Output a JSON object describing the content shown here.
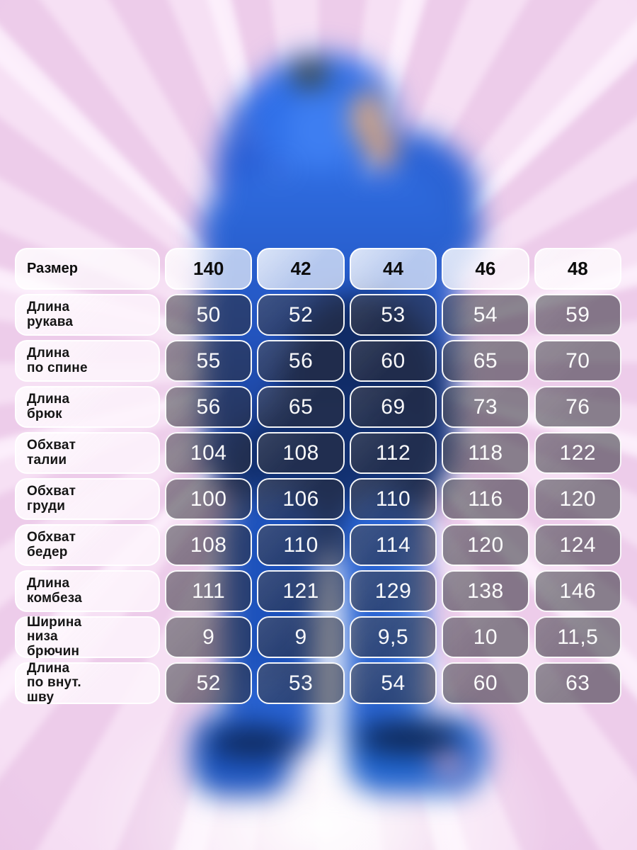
{
  "colors": {
    "background_pink": "#efcfed",
    "ray_light": "#f6e0f4",
    "figure_blue": "#2f6fe8",
    "value_cell_overlay": "rgba(46,45,54,0.55)",
    "value_text": "#ffffff",
    "label_text": "#151515"
  },
  "chart_data": {
    "type": "table",
    "title": "",
    "columns": [
      "Размер",
      "140",
      "42",
      "44",
      "46",
      "48"
    ],
    "rows": [
      {
        "label": "Длина\nрукава",
        "values": [
          "50",
          "52",
          "53",
          "54",
          "59"
        ]
      },
      {
        "label": "Длина\nпо спине",
        "values": [
          "55",
          "56",
          "60",
          "65",
          "70"
        ]
      },
      {
        "label": "Длина\nбрюк",
        "values": [
          "56",
          "65",
          "69",
          "73",
          "76"
        ]
      },
      {
        "label": "Обхват\nталии",
        "values": [
          "104",
          "108",
          "112",
          "118",
          "122"
        ]
      },
      {
        "label": "Обхват\nгруди",
        "values": [
          "100",
          "106",
          "110",
          "116",
          "120"
        ]
      },
      {
        "label": "Обхват\nбедер",
        "values": [
          "108",
          "110",
          "114",
          "120",
          "124"
        ]
      },
      {
        "label": "Длина\nкомбеза",
        "values": [
          "111",
          "121",
          "129",
          "138",
          "146"
        ]
      },
      {
        "label": "Ширина\nниза\nбрючин",
        "values": [
          "9",
          "9",
          "9,5",
          "10",
          "11,5"
        ]
      },
      {
        "label": "Длина\nпо внут.\nшву",
        "values": [
          "52",
          "53",
          "54",
          "60",
          "63"
        ]
      }
    ]
  }
}
